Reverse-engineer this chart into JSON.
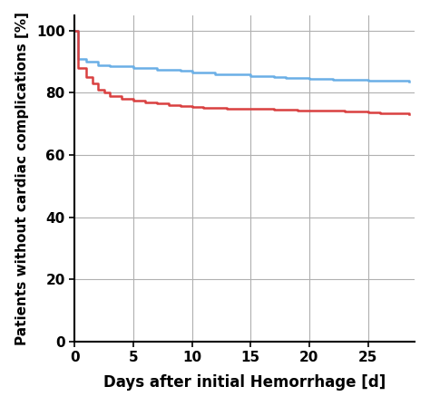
{
  "blue_x": [
    0,
    0.3,
    1.0,
    2.0,
    3.0,
    5.0,
    7.0,
    9.0,
    10.0,
    12.0,
    15.0,
    17.0,
    18.0,
    20.0,
    22.0,
    25.0,
    27.0,
    28.5
  ],
  "blue_y": [
    100,
    91,
    90,
    89,
    88.5,
    88,
    87.5,
    87,
    86.5,
    86,
    85.5,
    85,
    84.8,
    84.5,
    84.2,
    84,
    83.8,
    83.5
  ],
  "red_x": [
    0,
    0.3,
    1.0,
    1.5,
    2.0,
    2.5,
    3.0,
    4.0,
    5.0,
    6.0,
    7.0,
    8.0,
    9.0,
    10.0,
    11.0,
    13.0,
    15.0,
    17.0,
    19.0,
    21.0,
    23.0,
    25.0,
    26.0,
    27.0,
    28.5
  ],
  "red_y": [
    100,
    88,
    85,
    83,
    81,
    80,
    79,
    78,
    77.5,
    77,
    76.5,
    76,
    75.8,
    75.5,
    75.3,
    75,
    74.8,
    74.5,
    74.3,
    74.2,
    74,
    73.8,
    73.5,
    73.3,
    73
  ],
  "blue_color": "#6aafe6",
  "red_color": "#d94040",
  "xlabel": "Days after initial Hemorrhage [d]",
  "ylabel": "Patients without cardiac complications [%]",
  "xlim": [
    0,
    29
  ],
  "ylim": [
    0,
    105
  ],
  "xticks": [
    0,
    5,
    10,
    15,
    20,
    25
  ],
  "yticks": [
    0,
    20,
    40,
    60,
    80,
    100
  ],
  "grid_color": "#b0b0b0",
  "background_color": "#ffffff",
  "line_width": 1.8,
  "xlabel_fontsize": 12,
  "ylabel_fontsize": 11,
  "tick_fontsize": 11
}
